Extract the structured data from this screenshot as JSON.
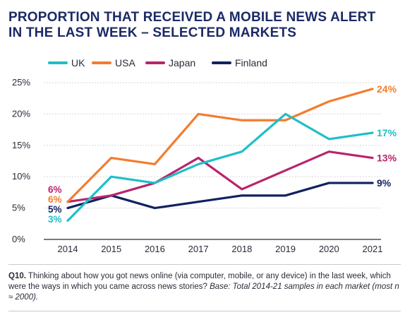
{
  "title_lines": [
    "PROPORTION THAT RECEIVED A MOBILE NEWS ALERT",
    "IN THE LAST WEEK – SELECTED MARKETS"
  ],
  "footnote": {
    "label": "Q10.",
    "text": " Thinking about how you got news online (via computer, mobile, or any device) in the last week, which were the ways in which you came across news stories? ",
    "base": "Base: Total 2014-21 samples in each market (most n ≈ 2000)."
  },
  "colors": {
    "UK": "#1fbfc7",
    "USA": "#f47c2e",
    "Japan": "#b8256b",
    "Finland": "#12215f",
    "axis": "#2b2b3a",
    "grid": "#d6d6dc"
  },
  "chart_data": {
    "type": "line",
    "x": [
      "2014",
      "2015",
      "2016",
      "2017",
      "2018",
      "2019",
      "2020",
      "2021"
    ],
    "ylim": [
      0,
      25
    ],
    "yticks": [
      "0%",
      "5%",
      "10%",
      "15%",
      "20%",
      "25%"
    ],
    "grid": true,
    "legend_position": "top-left",
    "series": [
      {
        "name": "UK",
        "values": [
          3,
          10,
          9,
          12,
          14,
          20,
          16,
          17
        ],
        "start_label": "3%",
        "end_label": "17%"
      },
      {
        "name": "USA",
        "values": [
          6,
          13,
          12,
          20,
          19,
          19,
          22,
          24
        ],
        "start_label": "6%",
        "end_label": "24%"
      },
      {
        "name": "Japan",
        "values": [
          6,
          7,
          9,
          13,
          8,
          11,
          14,
          13
        ],
        "start_label": "6%",
        "end_label": "13%"
      },
      {
        "name": "Finland",
        "values": [
          5,
          7,
          5,
          6,
          7,
          7,
          9,
          9
        ],
        "start_label": "5%",
        "end_label": "9%"
      }
    ]
  }
}
